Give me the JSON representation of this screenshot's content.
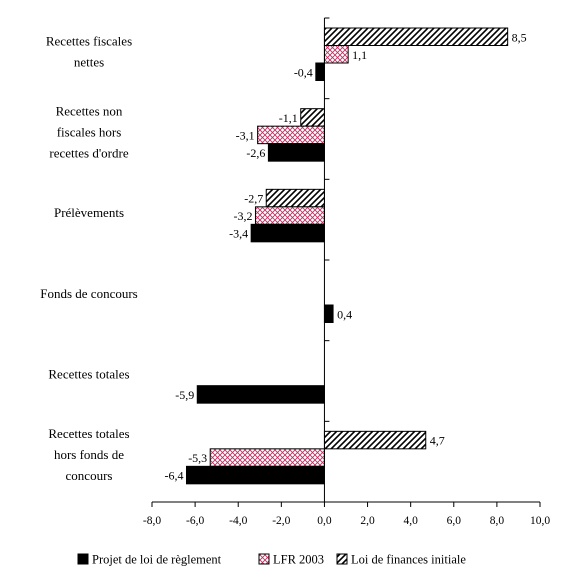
{
  "chart_data": {
    "type": "bar",
    "orientation": "horizontal",
    "categories": [
      [
        "Recettes fiscales",
        "nettes"
      ],
      [
        "Recettes non",
        "fiscales hors",
        "recettes d'ordre"
      ],
      [
        "Prélèvements"
      ],
      [
        "Fonds de concours"
      ],
      [
        "Recettes totales"
      ],
      [
        "Recettes totales",
        "hors fonds de",
        "concours"
      ]
    ],
    "series": [
      {
        "name": "Loi de finances initiale",
        "pattern": "diagonal-hatch",
        "values": [
          8.5,
          -1.1,
          -2.7,
          null,
          null,
          4.7
        ],
        "labels": [
          "8,5",
          "-1,1",
          "-2,7",
          "",
          "",
          "4,7"
        ]
      },
      {
        "name": "LFR 2003",
        "pattern": "crosshatch",
        "values": [
          1.1,
          -3.1,
          -3.2,
          null,
          null,
          -5.3
        ],
        "labels": [
          "1,1",
          "-3,1",
          "-3,2",
          "",
          "",
          "-5,3"
        ]
      },
      {
        "name": "Projet de loi de règlement",
        "pattern": "solid",
        "values": [
          -0.4,
          -2.6,
          -3.4,
          0.4,
          -5.9,
          -6.4
        ],
        "labels": [
          "-0,4",
          "-2,6",
          "-3,4",
          "0,4",
          "-5,9",
          "-6,4"
        ]
      }
    ],
    "legend_order": [
      "Projet de loi de règlement",
      "LFR 2003",
      "Loi de finances initiale"
    ],
    "xlim": [
      -8,
      10
    ],
    "xticks": [
      "-8,0",
      "-6,0",
      "-4,0",
      "-2,0",
      "0,0",
      "2,0",
      "4,0",
      "6,0",
      "8,0",
      "10,0"
    ],
    "legend_position": "bottom",
    "grid": false,
    "colors": {
      "solid": "#000000",
      "crosshatch": "#c03060",
      "background": "#ffffff"
    }
  }
}
